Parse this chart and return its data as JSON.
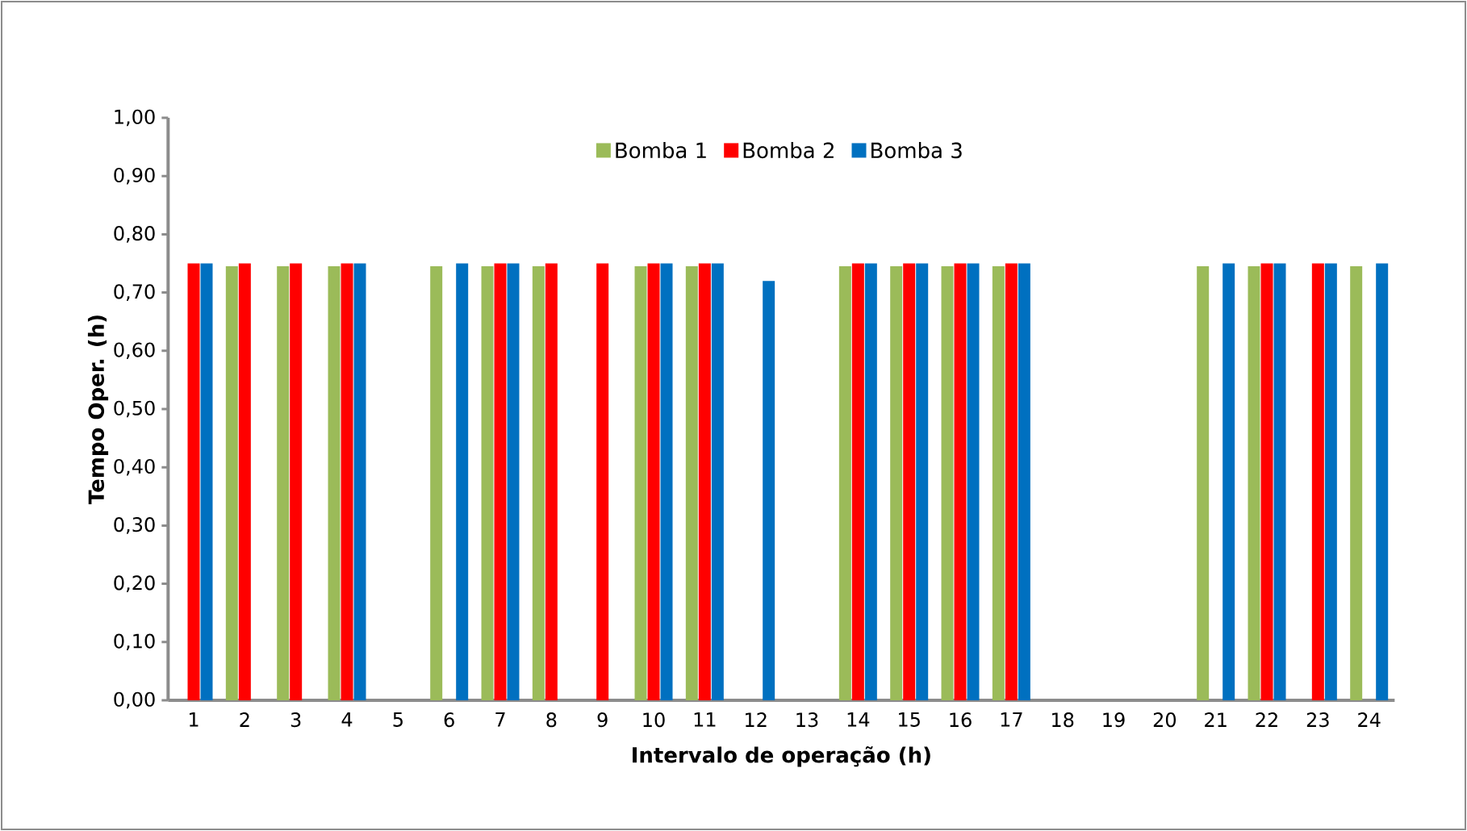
{
  "chart_data": {
    "type": "bar",
    "xlabel": "Intervalo de operação (h)",
    "ylabel": "Tempo Oper. (h)",
    "categories": [
      "1",
      "2",
      "3",
      "4",
      "5",
      "6",
      "7",
      "8",
      "9",
      "10",
      "11",
      "12",
      "13",
      "14",
      "15",
      "16",
      "17",
      "18",
      "19",
      "20",
      "21",
      "22",
      "23",
      "24"
    ],
    "series": [
      {
        "name": "Bomba 1",
        "color": "#9bbb59",
        "values": [
          null,
          0.745,
          0.745,
          0.745,
          null,
          0.745,
          0.745,
          0.745,
          null,
          0.745,
          0.745,
          null,
          null,
          0.745,
          0.745,
          0.745,
          0.745,
          null,
          null,
          null,
          0.745,
          0.745,
          null,
          0.745
        ]
      },
      {
        "name": "Bomba 2",
        "color": "#ff0000",
        "values": [
          0.75,
          0.75,
          0.75,
          0.75,
          null,
          null,
          0.75,
          0.75,
          0.75,
          0.75,
          0.75,
          null,
          null,
          0.75,
          0.75,
          0.75,
          0.75,
          null,
          null,
          null,
          null,
          0.75,
          0.75,
          null
        ]
      },
      {
        "name": "Bomba 3",
        "color": "#0070c0",
        "values": [
          0.75,
          null,
          null,
          0.75,
          null,
          0.75,
          0.75,
          null,
          null,
          0.75,
          0.75,
          0.72,
          null,
          0.75,
          0.75,
          0.75,
          0.75,
          null,
          null,
          null,
          0.75,
          0.75,
          0.75,
          0.75
        ]
      }
    ],
    "ylim": [
      0,
      1
    ],
    "yticks": [
      {
        "value": 0,
        "label": "0,00"
      },
      {
        "value": 0.1,
        "label": "0,10"
      },
      {
        "value": 0.2,
        "label": "0,20"
      },
      {
        "value": 0.3,
        "label": "0,30"
      },
      {
        "value": 0.4,
        "label": "0,40"
      },
      {
        "value": 0.5,
        "label": "0,50"
      },
      {
        "value": 0.6,
        "label": "0,60"
      },
      {
        "value": 0.7,
        "label": "0,70"
      },
      {
        "value": 0.8,
        "label": "0,80"
      },
      {
        "value": 0.9,
        "label": "0,90"
      },
      {
        "value": 1,
        "label": "1,00"
      }
    ],
    "grid": false,
    "legend": "top"
  }
}
